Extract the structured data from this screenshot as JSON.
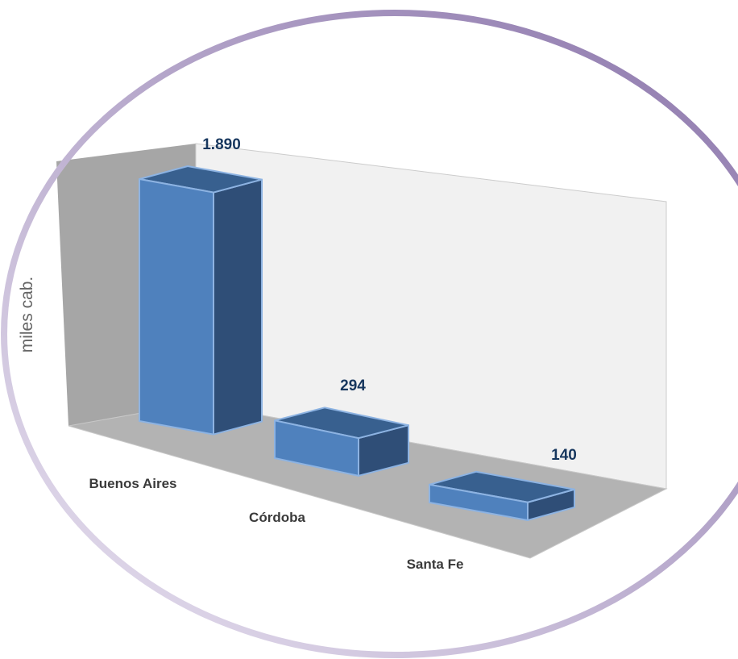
{
  "chart_data": {
    "type": "bar",
    "title": "",
    "xlabel": "",
    "ylabel": "miles cab.",
    "categories": [
      "Buenos Aires",
      "Córdoba",
      "Santa Fe"
    ],
    "values": [
      1890,
      294,
      140
    ],
    "value_labels": [
      "1.890",
      "294",
      "140"
    ],
    "legend": false,
    "grid": false
  },
  "colors": {
    "bar_front": "#4f81bd",
    "bar_side": "#2f4e77",
    "bar_top": "#38608f",
    "bar_edge": "#8db3e2",
    "back_wall": "#f1f1f1",
    "side_wall": "#a6a6a6",
    "floor": "#b3b3b3",
    "label_text": "#17375e",
    "frame_dark": "#8a74aa",
    "frame_light": "#e9e3f1"
  }
}
